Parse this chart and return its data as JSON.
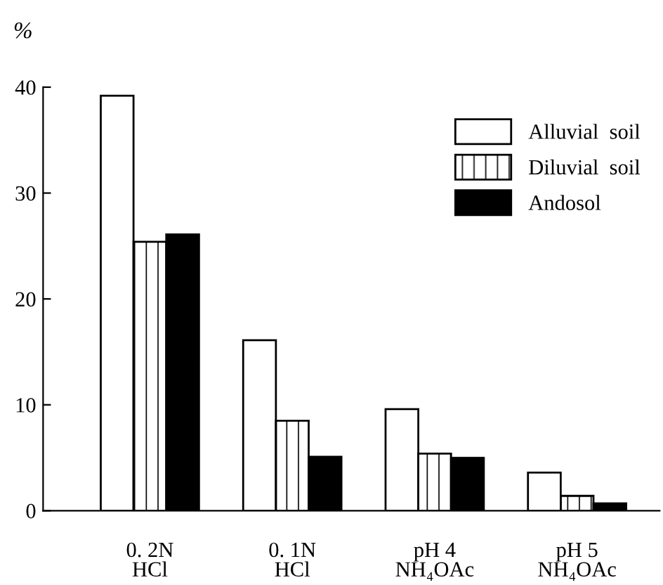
{
  "chart_data": {
    "type": "bar",
    "ylabel": "%",
    "categories": [
      "0. 2N\nHCl",
      "0. 1N\nHCl",
      "pH 4\nNH₄OAc",
      "pH 5\nNH₄OAc"
    ],
    "series": [
      {
        "name": "Alluvial  soil",
        "color": "#ffffff",
        "values": [
          39.2,
          16.1,
          9.6,
          3.6
        ]
      },
      {
        "name": "Diluvial  soil",
        "color": "#000000",
        "values": [
          25.4,
          8.5,
          5.4,
          1.4
        ]
      },
      {
        "name": "Andosol",
        "color": "#000000",
        "values": [
          26.1,
          5.1,
          5.0,
          0.7
        ]
      }
    ],
    "ylim": [
      0,
      40
    ],
    "yticks": [
      0,
      10,
      20,
      30,
      40
    ],
    "grid": false,
    "legend": "top right"
  }
}
